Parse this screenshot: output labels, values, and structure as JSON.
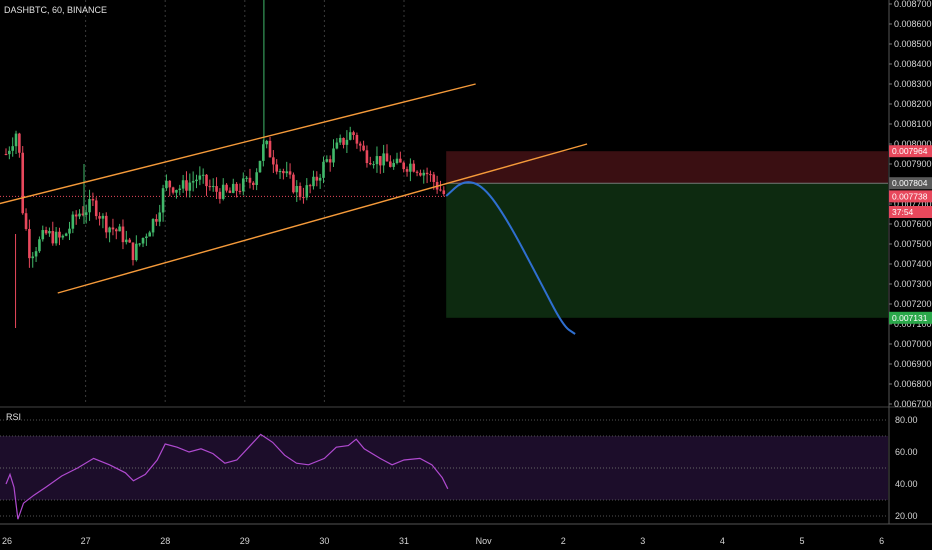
{
  "header": {
    "symbol_line": "DASHBTC, 60, BINANCE"
  },
  "colors": {
    "background": "#000000",
    "bull": "#41b86a",
    "bear": "#e8485c",
    "channel": "#f59a3a",
    "projection": "#2f6fd0",
    "stop_zone": "#3a0f12",
    "target_zone": "#0d2a10",
    "rsi_line": "#b04ad0",
    "rsi_band": "#1c0d2a"
  },
  "price_axis": {
    "ticks": [
      "0.008700",
      "0.008600",
      "0.008500",
      "0.008400",
      "0.008300",
      "0.008200",
      "0.008100",
      "0.008000",
      "0.007900",
      "0.007800",
      "0.007700",
      "0.007600",
      "0.007500",
      "0.007400",
      "0.007300",
      "0.007200",
      "0.007100",
      "0.007000",
      "0.006900",
      "0.006800",
      "0.006700"
    ],
    "tags": [
      {
        "label": "0.007964",
        "value": 0.007964,
        "color": "#e8485c"
      },
      {
        "label": "0.007804",
        "value": 0.007804,
        "color": "#5a5a5a"
      },
      {
        "label": "0.007738",
        "value": 0.007738,
        "color": "#e8485c"
      },
      {
        "label": "37:54",
        "value": 0.00766,
        "color": "#e8485c"
      },
      {
        "label": "0.007131",
        "value": 0.007131,
        "color": "#2aa84a"
      }
    ]
  },
  "rsi": {
    "label": "RSI",
    "ticks": [
      "80.00",
      "60.00",
      "40.00",
      "20.00"
    ],
    "upper": 70,
    "lower": 30
  },
  "time_axis": {
    "labels": [
      "26",
      "27",
      "28",
      "29",
      "30",
      "31",
      "Nov",
      "2",
      "3",
      "4",
      "5",
      "6"
    ]
  },
  "chart_data": {
    "type": "candlestick",
    "symbol": "DASHBTC",
    "interval": "60",
    "exchange": "BINANCE",
    "x_unit": "days from Oct 26 00:00",
    "y_range": [
      0.00667,
      0.00871
    ],
    "last_price": 0.007738,
    "waypoints": [
      [
        0.0,
        0.00795
      ],
      [
        0.15,
        0.00808
      ],
      [
        0.2,
        0.0077
      ],
      [
        0.3,
        0.00745
      ],
      [
        0.5,
        0.00755
      ],
      [
        0.7,
        0.00752
      ],
      [
        0.9,
        0.00765
      ],
      [
        1.1,
        0.0077
      ],
      [
        1.25,
        0.0076
      ],
      [
        1.45,
        0.00755
      ],
      [
        1.6,
        0.00745
      ],
      [
        1.75,
        0.00755
      ],
      [
        1.9,
        0.00765
      ],
      [
        2.0,
        0.0078
      ],
      [
        2.2,
        0.00778
      ],
      [
        2.4,
        0.00783
      ],
      [
        2.6,
        0.00777
      ],
      [
        2.8,
        0.00775
      ],
      [
        3.0,
        0.0078
      ],
      [
        3.1,
        0.00782
      ],
      [
        3.25,
        0.008
      ],
      [
        3.4,
        0.0079
      ],
      [
        3.55,
        0.00782
      ],
      [
        3.7,
        0.00775
      ],
      [
        3.85,
        0.00779
      ],
      [
        4.0,
        0.0079
      ],
      [
        4.2,
        0.008
      ],
      [
        4.35,
        0.00806
      ],
      [
        4.5,
        0.00795
      ],
      [
        4.7,
        0.00792
      ],
      [
        4.9,
        0.00789
      ],
      [
        5.1,
        0.0079
      ],
      [
        5.3,
        0.00785
      ],
      [
        5.5,
        0.00775
      ]
    ],
    "channel_upper": {
      "x": [
        -0.3,
        5.9
      ],
      "y": [
        0.00768,
        0.0083
      ]
    },
    "channel_lower": {
      "x": [
        0.65,
        7.3
      ],
      "y": [
        0.007255,
        0.008
      ]
    },
    "stop_zone": {
      "x": [
        5.53,
        12.0
      ],
      "y": [
        0.007804,
        0.007964
      ]
    },
    "target_zone": {
      "x": [
        5.53,
        12.0
      ],
      "y": [
        0.007131,
        0.007804
      ]
    },
    "projection": [
      [
        5.53,
        0.00774
      ],
      [
        5.75,
        0.00782
      ],
      [
        6.0,
        0.00779
      ],
      [
        6.3,
        0.00762
      ],
      [
        6.7,
        0.00732
      ],
      [
        7.0,
        0.00709
      ],
      [
        7.15,
        0.00705
      ]
    ],
    "rsi_series": [
      [
        0.0,
        40
      ],
      [
        0.05,
        46
      ],
      [
        0.1,
        38
      ],
      [
        0.15,
        18
      ],
      [
        0.22,
        28
      ],
      [
        0.35,
        33
      ],
      [
        0.5,
        38
      ],
      [
        0.7,
        45
      ],
      [
        0.9,
        50
      ],
      [
        1.1,
        56
      ],
      [
        1.3,
        52
      ],
      [
        1.5,
        47
      ],
      [
        1.6,
        42
      ],
      [
        1.75,
        46
      ],
      [
        1.9,
        55
      ],
      [
        2.0,
        65
      ],
      [
        2.15,
        63
      ],
      [
        2.3,
        60
      ],
      [
        2.45,
        62
      ],
      [
        2.6,
        59
      ],
      [
        2.75,
        53
      ],
      [
        2.9,
        55
      ],
      [
        3.05,
        63
      ],
      [
        3.2,
        71
      ],
      [
        3.35,
        66
      ],
      [
        3.5,
        58
      ],
      [
        3.65,
        53
      ],
      [
        3.8,
        52
      ],
      [
        4.0,
        56
      ],
      [
        4.15,
        63
      ],
      [
        4.3,
        64
      ],
      [
        4.4,
        68
      ],
      [
        4.5,
        62
      ],
      [
        4.7,
        56
      ],
      [
        4.85,
        52
      ],
      [
        5.0,
        55
      ],
      [
        5.2,
        56
      ],
      [
        5.35,
        52
      ],
      [
        5.48,
        44
      ],
      [
        5.55,
        37
      ]
    ]
  }
}
